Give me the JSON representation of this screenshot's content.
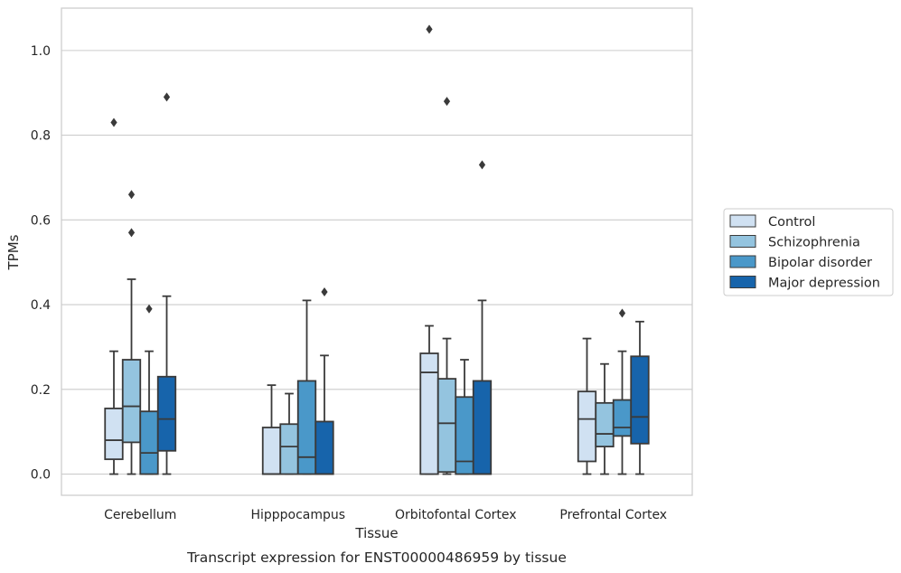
{
  "chart_data": {
    "type": "box",
    "title": "",
    "caption": "Transcript expression for ENST00000486959 by tissue",
    "xlabel": "Tissue",
    "ylabel": "TPMs",
    "ylim": [
      -0.05,
      1.1
    ],
    "yticks": [
      0.0,
      0.2,
      0.4,
      0.6,
      0.8,
      1.0
    ],
    "ytick_labels": [
      "0.0",
      "0.2",
      "0.4",
      "0.6",
      "0.8",
      "1.0"
    ],
    "grid": "horizontal",
    "legend_position": "right",
    "categories": [
      "Cerebellum",
      "Hipppocampus",
      "Orbitofontal Cortex",
      "Prefrontal Cortex"
    ],
    "series": [
      {
        "name": "Control",
        "color": "#d0e1f2",
        "boxes": [
          {
            "whisker_low": 0.0,
            "q1": 0.035,
            "median": 0.08,
            "q3": 0.155,
            "whisker_high": 0.29,
            "outliers": [
              0.83
            ]
          },
          {
            "whisker_low": 0.0,
            "q1": 0.0,
            "median": 0.0,
            "q3": 0.11,
            "whisker_high": 0.21,
            "outliers": []
          },
          {
            "whisker_low": 0.0,
            "q1": 0.0,
            "median": 0.24,
            "q3": 0.285,
            "whisker_high": 0.35,
            "outliers": [
              1.05
            ]
          },
          {
            "whisker_low": 0.0,
            "q1": 0.03,
            "median": 0.13,
            "q3": 0.195,
            "whisker_high": 0.32,
            "outliers": []
          }
        ]
      },
      {
        "name": "Schizophrenia",
        "color": "#94c4df",
        "boxes": [
          {
            "whisker_low": 0.0,
            "q1": 0.075,
            "median": 0.16,
            "q3": 0.27,
            "whisker_high": 0.46,
            "outliers": [
              0.66,
              0.57
            ]
          },
          {
            "whisker_low": 0.0,
            "q1": 0.0,
            "median": 0.065,
            "q3": 0.118,
            "whisker_high": 0.19,
            "outliers": []
          },
          {
            "whisker_low": 0.0,
            "q1": 0.005,
            "median": 0.12,
            "q3": 0.225,
            "whisker_high": 0.32,
            "outliers": [
              0.88
            ]
          },
          {
            "whisker_low": 0.0,
            "q1": 0.065,
            "median": 0.095,
            "q3": 0.168,
            "whisker_high": 0.26,
            "outliers": []
          }
        ]
      },
      {
        "name": "Bipolar disorder",
        "color": "#4a98c9",
        "boxes": [
          {
            "whisker_low": 0.0,
            "q1": 0.0,
            "median": 0.05,
            "q3": 0.148,
            "whisker_high": 0.29,
            "outliers": [
              0.39
            ]
          },
          {
            "whisker_low": 0.0,
            "q1": 0.0,
            "median": 0.04,
            "q3": 0.22,
            "whisker_high": 0.41,
            "outliers": []
          },
          {
            "whisker_low": 0.0,
            "q1": 0.0,
            "median": 0.03,
            "q3": 0.182,
            "whisker_high": 0.27,
            "outliers": []
          },
          {
            "whisker_low": 0.0,
            "q1": 0.09,
            "median": 0.11,
            "q3": 0.175,
            "whisker_high": 0.29,
            "outliers": [
              0.38
            ]
          }
        ]
      },
      {
        "name": "Major depression",
        "color": "#1764ab",
        "boxes": [
          {
            "whisker_low": 0.0,
            "q1": 0.055,
            "median": 0.13,
            "q3": 0.23,
            "whisker_high": 0.42,
            "outliers": [
              0.89
            ]
          },
          {
            "whisker_low": 0.0,
            "q1": 0.0,
            "median": 0.0,
            "q3": 0.124,
            "whisker_high": 0.28,
            "outliers": [
              0.43
            ]
          },
          {
            "whisker_low": 0.0,
            "q1": 0.0,
            "median": 0.0,
            "q3": 0.22,
            "whisker_high": 0.41,
            "outliers": [
              0.73
            ]
          },
          {
            "whisker_low": 0.0,
            "q1": 0.072,
            "median": 0.135,
            "q3": 0.278,
            "whisker_high": 0.36,
            "outliers": []
          }
        ]
      }
    ]
  }
}
